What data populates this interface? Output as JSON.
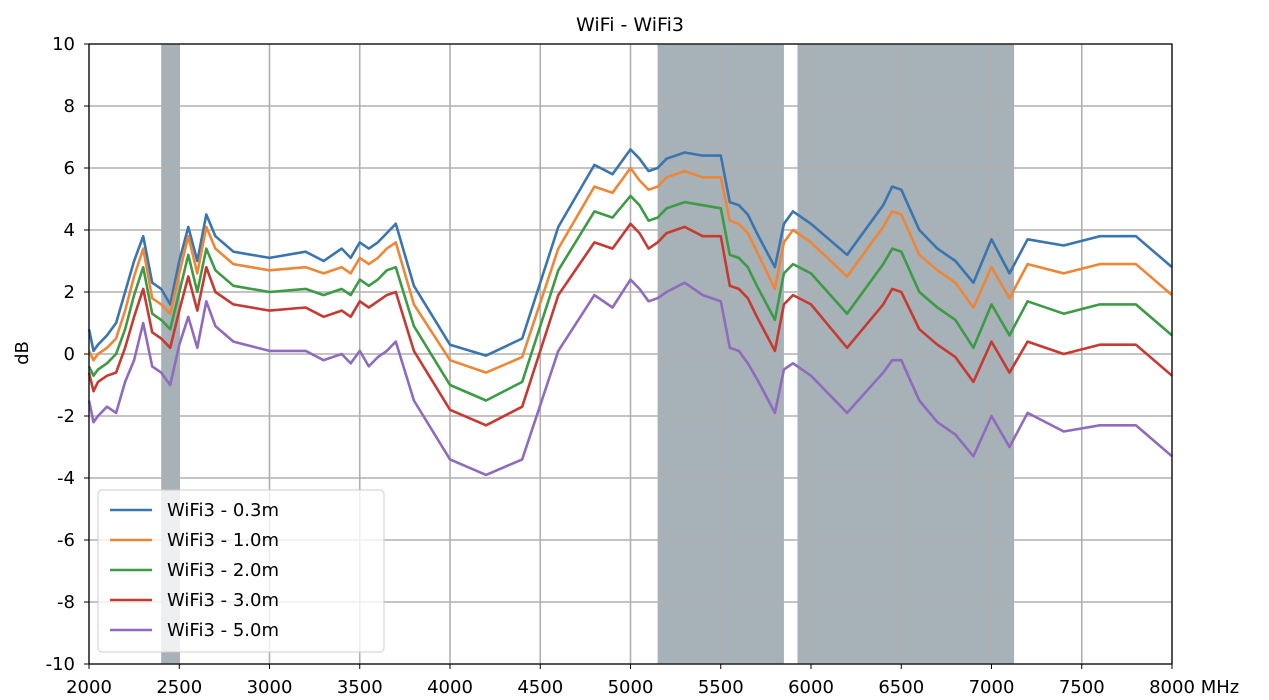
{
  "chart_data": {
    "type": "line",
    "title": "WiFi - WiFi3",
    "xlabel": "",
    "ylabel": "dB",
    "x_unit": "MHz",
    "xlim": [
      2000,
      8000
    ],
    "ylim": [
      -10,
      10
    ],
    "xticks": [
      2000,
      2500,
      3000,
      3500,
      4000,
      4500,
      5000,
      5500,
      6000,
      6500,
      7000,
      7500,
      8000
    ],
    "yticks": [
      -10,
      -8,
      -6,
      -4,
      -2,
      0,
      2,
      4,
      6,
      8,
      10
    ],
    "grid": true,
    "legend_position": "bottom-left",
    "shaded_bands": [
      [
        2400,
        2500
      ],
      [
        5150,
        5850
      ],
      [
        5925,
        7125
      ]
    ],
    "band_color": "#a6b1b8",
    "x": [
      2000,
      2025,
      2050,
      2100,
      2150,
      2200,
      2250,
      2300,
      2350,
      2400,
      2450,
      2500,
      2550,
      2600,
      2650,
      2700,
      2800,
      3000,
      3200,
      3300,
      3400,
      3450,
      3500,
      3550,
      3600,
      3650,
      3700,
      3800,
      4000,
      4200,
      4400,
      4600,
      4800,
      4900,
      5000,
      5050,
      5100,
      5150,
      5200,
      5300,
      5400,
      5500,
      5550,
      5600,
      5650,
      5700,
      5800,
      5850,
      5900,
      6000,
      6200,
      6400,
      6450,
      6500,
      6600,
      6700,
      6800,
      6900,
      7000,
      7100,
      7200,
      7400,
      7600,
      7800,
      8000
    ],
    "series": [
      {
        "name": "WiFi3 - 0.3m",
        "color": "#3b75af",
        "values": [
          0.8,
          0.1,
          0.3,
          0.6,
          1.0,
          2.0,
          3.0,
          3.8,
          2.3,
          2.1,
          1.6,
          3.0,
          4.1,
          3.0,
          4.5,
          3.8,
          3.3,
          3.1,
          3.3,
          3.0,
          3.4,
          3.1,
          3.6,
          3.4,
          3.6,
          3.9,
          4.2,
          2.2,
          0.3,
          -0.05,
          0.5,
          4.1,
          6.1,
          5.8,
          6.6,
          6.3,
          5.9,
          6.0,
          6.3,
          6.5,
          6.4,
          6.4,
          4.9,
          4.8,
          4.5,
          3.9,
          2.8,
          4.2,
          4.6,
          4.2,
          3.2,
          4.8,
          5.4,
          5.3,
          4.0,
          3.4,
          3.0,
          2.3,
          3.7,
          2.6,
          3.7,
          3.5,
          3.8,
          3.8,
          2.8
        ]
      },
      {
        "name": "WiFi3 - 1.0m",
        "color": "#ef8636",
        "values": [
          0.1,
          -0.2,
          0.0,
          0.2,
          0.5,
          1.4,
          2.5,
          3.4,
          1.8,
          1.6,
          1.3,
          2.6,
          3.8,
          2.6,
          4.1,
          3.4,
          2.9,
          2.7,
          2.8,
          2.6,
          2.8,
          2.6,
          3.1,
          2.9,
          3.1,
          3.4,
          3.6,
          1.6,
          -0.2,
          -0.6,
          -0.1,
          3.4,
          5.4,
          5.2,
          6.0,
          5.6,
          5.3,
          5.4,
          5.7,
          5.9,
          5.7,
          5.7,
          4.3,
          4.2,
          3.9,
          3.3,
          2.1,
          3.6,
          4.0,
          3.6,
          2.5,
          4.1,
          4.6,
          4.5,
          3.2,
          2.7,
          2.3,
          1.5,
          2.8,
          1.8,
          2.9,
          2.6,
          2.9,
          2.9,
          1.9
        ]
      },
      {
        "name": "WiFi3 - 2.0m",
        "color": "#3d9a45",
        "values": [
          -0.4,
          -0.7,
          -0.5,
          -0.3,
          0.0,
          0.8,
          1.9,
          2.8,
          1.3,
          1.1,
          0.8,
          2.0,
          3.2,
          2.0,
          3.4,
          2.7,
          2.2,
          2.0,
          2.1,
          1.9,
          2.1,
          1.9,
          2.4,
          2.2,
          2.4,
          2.7,
          2.8,
          0.9,
          -1.0,
          -1.5,
          -0.9,
          2.7,
          4.6,
          4.4,
          5.1,
          4.8,
          4.3,
          4.4,
          4.7,
          4.9,
          4.8,
          4.7,
          3.2,
          3.1,
          2.8,
          2.2,
          1.1,
          2.6,
          2.9,
          2.6,
          1.3,
          2.9,
          3.4,
          3.3,
          2.0,
          1.5,
          1.1,
          0.2,
          1.6,
          0.6,
          1.7,
          1.3,
          1.6,
          1.6,
          0.6
        ]
      },
      {
        "name": "WiFi3 - 3.0m",
        "color": "#c73a32",
        "values": [
          -0.6,
          -1.2,
          -0.9,
          -0.7,
          -0.6,
          0.2,
          1.2,
          2.1,
          0.7,
          0.5,
          0.2,
          1.4,
          2.5,
          1.4,
          2.8,
          2.0,
          1.6,
          1.4,
          1.5,
          1.2,
          1.4,
          1.2,
          1.7,
          1.5,
          1.7,
          1.9,
          2.0,
          0.1,
          -1.8,
          -2.3,
          -1.7,
          1.9,
          3.6,
          3.4,
          4.2,
          3.9,
          3.4,
          3.6,
          3.9,
          4.1,
          3.8,
          3.8,
          2.2,
          2.1,
          1.8,
          1.2,
          0.1,
          1.6,
          1.9,
          1.6,
          0.2,
          1.6,
          2.1,
          2.0,
          0.8,
          0.3,
          -0.1,
          -0.9,
          0.4,
          -0.6,
          0.4,
          0.0,
          0.3,
          0.3,
          -0.7
        ]
      },
      {
        "name": "WiFi3 - 5.0m",
        "color": "#8f6bbd",
        "values": [
          -1.5,
          -2.2,
          -2.0,
          -1.7,
          -1.9,
          -0.9,
          -0.2,
          1.0,
          -0.4,
          -0.6,
          -1.0,
          0.3,
          1.2,
          0.2,
          1.7,
          0.9,
          0.4,
          0.1,
          0.1,
          -0.2,
          0.0,
          -0.3,
          0.1,
          -0.4,
          -0.1,
          0.1,
          0.4,
          -1.5,
          -3.4,
          -3.9,
          -3.4,
          0.1,
          1.9,
          1.5,
          2.4,
          2.1,
          1.7,
          1.8,
          2.0,
          2.3,
          1.9,
          1.7,
          0.2,
          0.1,
          -0.3,
          -0.8,
          -1.9,
          -0.5,
          -0.3,
          -0.7,
          -1.9,
          -0.6,
          -0.2,
          -0.2,
          -1.5,
          -2.2,
          -2.6,
          -3.3,
          -2.0,
          -3.0,
          -1.9,
          -2.5,
          -2.3,
          -2.3,
          -3.3
        ]
      }
    ]
  }
}
